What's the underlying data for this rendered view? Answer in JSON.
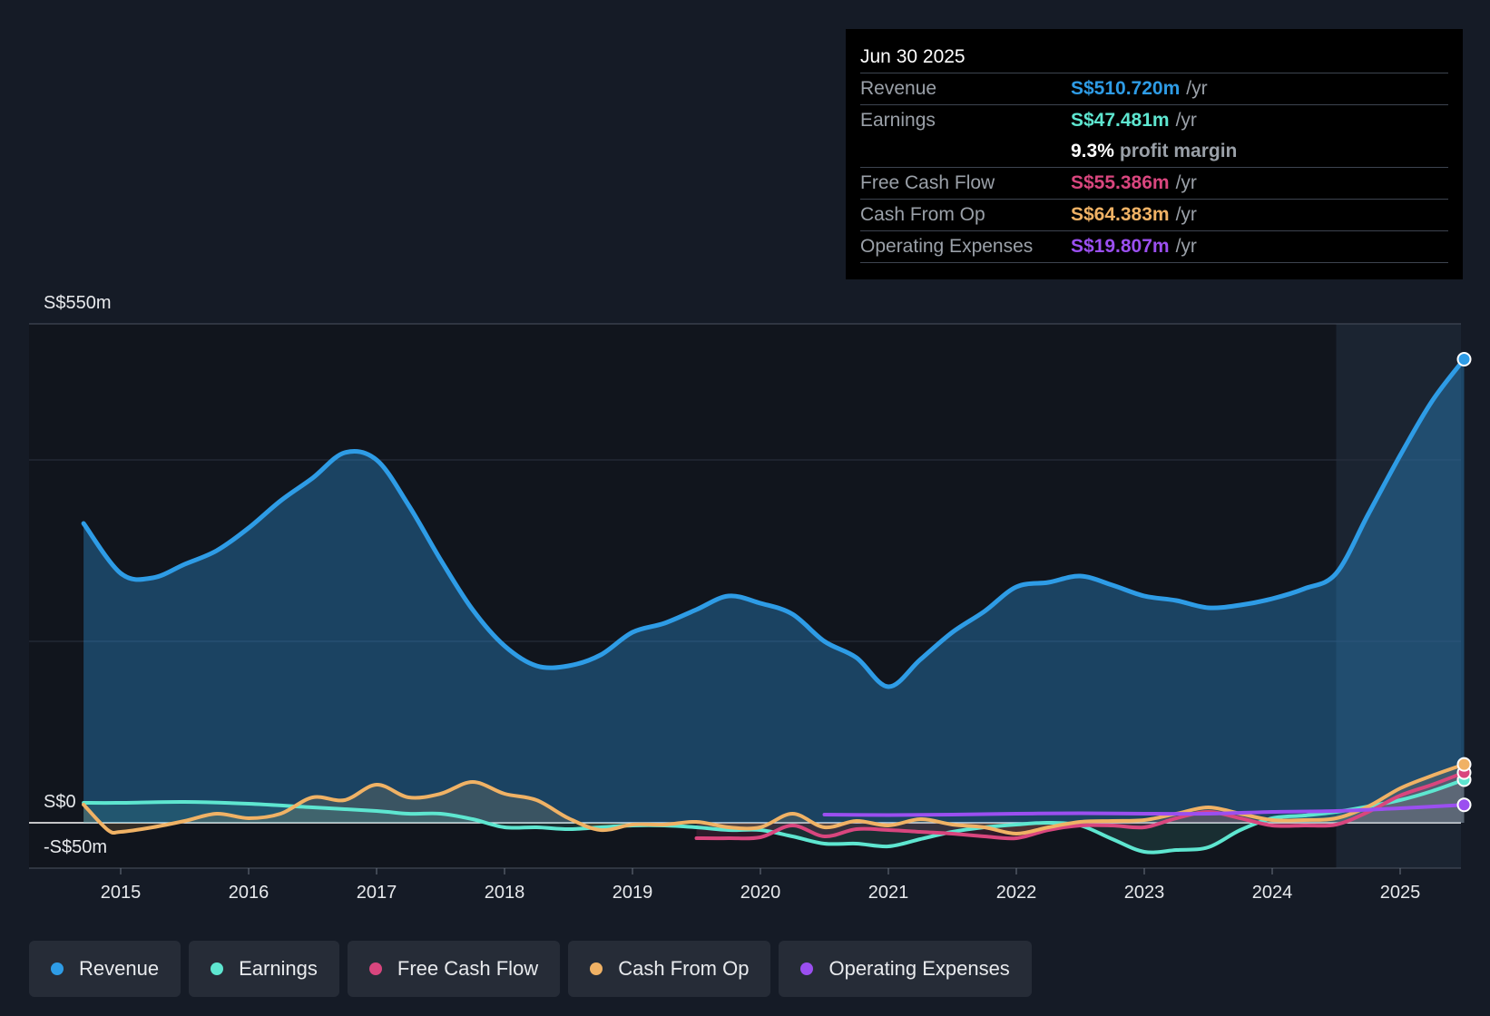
{
  "tooltip": {
    "date": "Jun 30 2025",
    "rows": [
      {
        "label": "Revenue",
        "value": "S$510.720m",
        "unit": "/yr",
        "color": "#2e9ce6"
      },
      {
        "label": "Earnings",
        "value": "S$47.481m",
        "unit": "/yr",
        "color": "#5ee6d0"
      },
      {
        "label": "",
        "value": "9.3%",
        "unit": "profit margin",
        "color": "#ffffff"
      },
      {
        "label": "Free Cash Flow",
        "value": "S$55.386m",
        "unit": "/yr",
        "color": "#d9467e"
      },
      {
        "label": "Cash From Op",
        "value": "S$64.383m",
        "unit": "/yr",
        "color": "#f0b265"
      },
      {
        "label": "Operating Expenses",
        "value": "S$19.807m",
        "unit": "/yr",
        "color": "#9b4ff0"
      }
    ]
  },
  "legend": [
    {
      "label": "Revenue",
      "color": "#2e9ce6"
    },
    {
      "label": "Earnings",
      "color": "#5ee6d0"
    },
    {
      "label": "Free Cash Flow",
      "color": "#d9467e"
    },
    {
      "label": "Cash From Op",
      "color": "#f0b265"
    },
    {
      "label": "Operating Expenses",
      "color": "#9b4ff0"
    }
  ],
  "chart_data": {
    "type": "line",
    "ylabels": {
      "top": "S$550m",
      "zero": "S$0",
      "bottom": "-S$50m"
    },
    "ylim": [
      -50,
      550
    ],
    "xlim": [
      2014.75,
      2025.5
    ],
    "x_ticks": [
      "2015",
      "2016",
      "2017",
      "2018",
      "2019",
      "2020",
      "2021",
      "2022",
      "2023",
      "2024",
      "2025"
    ],
    "x_tick_values": [
      2015,
      2016,
      2017,
      2018,
      2019,
      2020,
      2021,
      2022,
      2023,
      2024,
      2025
    ],
    "grid": true,
    "highlight_from": 2024.5,
    "series": [
      {
        "name": "Revenue",
        "color": "#2e9ce6",
        "fill": true,
        "points": [
          [
            2014.71,
            330
          ],
          [
            2015,
            275
          ],
          [
            2015.25,
            270
          ],
          [
            2015.5,
            285
          ],
          [
            2015.75,
            300
          ],
          [
            2016,
            325
          ],
          [
            2016.25,
            355
          ],
          [
            2016.5,
            380
          ],
          [
            2016.75,
            408
          ],
          [
            2017,
            400
          ],
          [
            2017.25,
            350
          ],
          [
            2017.5,
            290
          ],
          [
            2017.75,
            235
          ],
          [
            2018,
            195
          ],
          [
            2018.25,
            173
          ],
          [
            2018.5,
            173
          ],
          [
            2018.75,
            185
          ],
          [
            2019,
            210
          ],
          [
            2019.25,
            220
          ],
          [
            2019.5,
            235
          ],
          [
            2019.75,
            250
          ],
          [
            2020,
            242
          ],
          [
            2020.25,
            230
          ],
          [
            2020.5,
            200
          ],
          [
            2020.75,
            182
          ],
          [
            2021,
            150
          ],
          [
            2021.25,
            180
          ],
          [
            2021.5,
            210
          ],
          [
            2021.75,
            233
          ],
          [
            2022,
            260
          ],
          [
            2022.25,
            265
          ],
          [
            2022.5,
            272
          ],
          [
            2022.75,
            262
          ],
          [
            2023,
            250
          ],
          [
            2023.25,
            245
          ],
          [
            2023.5,
            237
          ],
          [
            2023.75,
            240
          ],
          [
            2024,
            247
          ],
          [
            2024.25,
            258
          ],
          [
            2024.5,
            275
          ],
          [
            2024.75,
            340
          ],
          [
            2025,
            405
          ],
          [
            2025.25,
            465
          ],
          [
            2025.5,
            511
          ]
        ]
      },
      {
        "name": "Earnings",
        "color": "#5ee6d0",
        "points": [
          [
            2014.71,
            22
          ],
          [
            2015,
            22
          ],
          [
            2015.5,
            23
          ],
          [
            2016,
            21
          ],
          [
            2016.5,
            17
          ],
          [
            2017,
            13
          ],
          [
            2017.25,
            10
          ],
          [
            2017.5,
            10
          ],
          [
            2017.75,
            4
          ],
          [
            2018,
            -5
          ],
          [
            2018.25,
            -5
          ],
          [
            2018.5,
            -7
          ],
          [
            2018.75,
            -5
          ],
          [
            2019,
            -3
          ],
          [
            2019.25,
            -3
          ],
          [
            2019.5,
            -5
          ],
          [
            2019.75,
            -8
          ],
          [
            2020,
            -8
          ],
          [
            2020.25,
            -15
          ],
          [
            2020.5,
            -23
          ],
          [
            2020.75,
            -23
          ],
          [
            2021,
            -26
          ],
          [
            2021.25,
            -18
          ],
          [
            2021.5,
            -10
          ],
          [
            2021.75,
            -5
          ],
          [
            2022,
            -2
          ],
          [
            2022.25,
            0
          ],
          [
            2022.5,
            -3
          ],
          [
            2022.75,
            -18
          ],
          [
            2023,
            -32
          ],
          [
            2023.25,
            -30
          ],
          [
            2023.5,
            -27
          ],
          [
            2023.75,
            -8
          ],
          [
            2024,
            5
          ],
          [
            2024.25,
            8
          ],
          [
            2024.5,
            12
          ],
          [
            2024.75,
            18
          ],
          [
            2025,
            25
          ],
          [
            2025.25,
            35
          ],
          [
            2025.5,
            47.5
          ]
        ]
      },
      {
        "name": "Free Cash Flow",
        "color": "#d9467e",
        "points": [
          [
            2019.5,
            -17
          ],
          [
            2019.75,
            -17
          ],
          [
            2020,
            -16
          ],
          [
            2020.25,
            -3
          ],
          [
            2020.5,
            -15
          ],
          [
            2020.75,
            -7
          ],
          [
            2021,
            -8
          ],
          [
            2021.25,
            -10
          ],
          [
            2021.5,
            -12
          ],
          [
            2021.75,
            -15
          ],
          [
            2022,
            -17
          ],
          [
            2022.25,
            -8
          ],
          [
            2022.5,
            -3
          ],
          [
            2022.75,
            -3
          ],
          [
            2023,
            -5
          ],
          [
            2023.25,
            5
          ],
          [
            2023.5,
            12
          ],
          [
            2023.75,
            5
          ],
          [
            2024,
            -3
          ],
          [
            2024.25,
            -3
          ],
          [
            2024.5,
            -2
          ],
          [
            2024.75,
            12
          ],
          [
            2025,
            30
          ],
          [
            2025.25,
            42
          ],
          [
            2025.5,
            55.4
          ]
        ]
      },
      {
        "name": "Cash From Op",
        "color": "#f0b265",
        "points": [
          [
            2014.71,
            20
          ],
          [
            2014.9,
            -8
          ],
          [
            2015,
            -10
          ],
          [
            2015.25,
            -5
          ],
          [
            2015.5,
            2
          ],
          [
            2015.75,
            10
          ],
          [
            2016,
            5
          ],
          [
            2016.25,
            10
          ],
          [
            2016.5,
            28
          ],
          [
            2016.75,
            25
          ],
          [
            2017,
            42
          ],
          [
            2017.25,
            28
          ],
          [
            2017.5,
            32
          ],
          [
            2017.75,
            45
          ],
          [
            2018,
            32
          ],
          [
            2018.25,
            25
          ],
          [
            2018.5,
            5
          ],
          [
            2018.75,
            -8
          ],
          [
            2019,
            -2
          ],
          [
            2019.25,
            -2
          ],
          [
            2019.5,
            1
          ],
          [
            2019.75,
            -5
          ],
          [
            2020,
            -5
          ],
          [
            2020.25,
            10
          ],
          [
            2020.5,
            -5
          ],
          [
            2020.75,
            2
          ],
          [
            2021,
            -3
          ],
          [
            2021.25,
            4
          ],
          [
            2021.5,
            -2
          ],
          [
            2021.75,
            -5
          ],
          [
            2022,
            -12
          ],
          [
            2022.25,
            -5
          ],
          [
            2022.5,
            1
          ],
          [
            2022.75,
            2
          ],
          [
            2023,
            3
          ],
          [
            2023.25,
            10
          ],
          [
            2023.5,
            17
          ],
          [
            2023.75,
            10
          ],
          [
            2024,
            3
          ],
          [
            2024.25,
            3
          ],
          [
            2024.5,
            5
          ],
          [
            2024.75,
            18
          ],
          [
            2025,
            38
          ],
          [
            2025.25,
            52
          ],
          [
            2025.5,
            64.4
          ]
        ]
      },
      {
        "name": "Operating Expenses",
        "color": "#9b4ff0",
        "points": [
          [
            2020.5,
            9
          ],
          [
            2021,
            8.5
          ],
          [
            2021.5,
            9
          ],
          [
            2022,
            10
          ],
          [
            2022.5,
            10.5
          ],
          [
            2023,
            10
          ],
          [
            2023.5,
            10
          ],
          [
            2024,
            12
          ],
          [
            2024.5,
            13
          ],
          [
            2025,
            16
          ],
          [
            2025.5,
            19.8
          ]
        ]
      }
    ]
  }
}
